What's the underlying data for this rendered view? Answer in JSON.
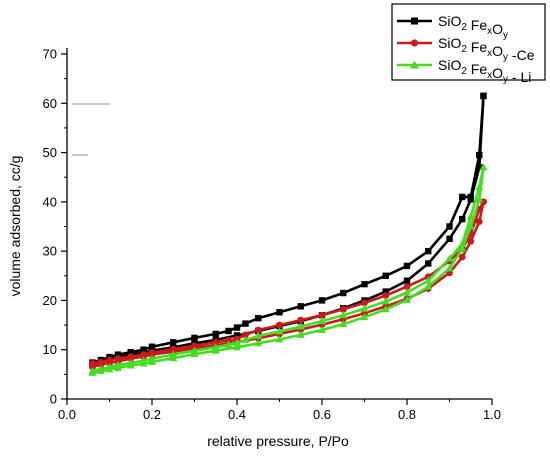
{
  "chart_data": {
    "type": "line",
    "xlabel": "relative pressure, P/Po",
    "ylabel": "volume adsorbed, cc/g",
    "xlim": [
      0.0,
      1.0
    ],
    "ylim": [
      0,
      70
    ],
    "xticks": [
      "0.0",
      "0.2",
      "0.4",
      "0.6",
      "0.8",
      "1.0"
    ],
    "yticks": [
      "0",
      "10",
      "20",
      "30",
      "40",
      "50",
      "60",
      "70"
    ],
    "legend_position": "top-right",
    "series": [
      {
        "name": "SiO2 FexOy",
        "legend": {
          "a": "SiO",
          "a_sub": "2",
          "b": " Fe",
          "b_sub": "x",
          "c": "O",
          "c_sub": "y",
          "d": ""
        },
        "color": "#000000",
        "marker": "square",
        "adsorption": {
          "x": [
            0.06,
            0.08,
            0.1,
            0.12,
            0.15,
            0.18,
            0.2,
            0.25,
            0.3,
            0.35,
            0.4,
            0.45,
            0.5,
            0.55,
            0.6,
            0.65,
            0.7,
            0.75,
            0.8,
            0.85,
            0.9,
            0.93,
            0.95,
            0.97,
            0.98
          ],
          "y": [
            7.0,
            7.6,
            8.0,
            8.4,
            9.0,
            9.4,
            9.8,
            10.5,
            11.3,
            12.0,
            12.9,
            13.8,
            14.8,
            15.8,
            17.0,
            18.4,
            20.0,
            21.8,
            24.0,
            27.5,
            32.5,
            36.5,
            40.5,
            47.0,
            61.5
          ]
        },
        "desorption": {
          "x": [
            0.98,
            0.97,
            0.95,
            0.93,
            0.9,
            0.85,
            0.8,
            0.75,
            0.7,
            0.65,
            0.6,
            0.55,
            0.5,
            0.45,
            0.42,
            0.4,
            0.38,
            0.35,
            0.3,
            0.25,
            0.2,
            0.18,
            0.15,
            0.12,
            0.1,
            0.08,
            0.06
          ],
          "y": [
            61.5,
            49.5,
            41.0,
            41.0,
            35.0,
            30.0,
            27.0,
            25.0,
            23.3,
            21.5,
            20.0,
            18.8,
            17.6,
            16.4,
            15.3,
            14.5,
            13.8,
            13.2,
            12.4,
            11.5,
            10.6,
            10.0,
            9.5,
            9.0,
            8.5,
            7.9,
            7.4
          ]
        }
      },
      {
        "name": "SiO2 FexOy -Ce",
        "legend": {
          "a": "SiO",
          "a_sub": "2",
          "b": " Fe",
          "b_sub": "x",
          "c": "O",
          "c_sub": "y",
          "d": " -Ce"
        },
        "color": "#cc1a1a",
        "marker": "circle",
        "adsorption": {
          "x": [
            0.06,
            0.08,
            0.1,
            0.12,
            0.15,
            0.18,
            0.2,
            0.25,
            0.3,
            0.35,
            0.4,
            0.45,
            0.5,
            0.55,
            0.6,
            0.65,
            0.7,
            0.75,
            0.8,
            0.85,
            0.9,
            0.93,
            0.95,
            0.97,
            0.98
          ],
          "y": [
            6.5,
            7.0,
            7.3,
            7.6,
            8.2,
            8.6,
            9.0,
            9.6,
            10.3,
            10.9,
            11.6,
            12.3,
            13.2,
            14.1,
            15.1,
            16.2,
            17.4,
            18.8,
            20.3,
            22.4,
            25.6,
            28.8,
            32.0,
            36.0,
            40.0
          ]
        },
        "desorption": {
          "x": [
            0.98,
            0.97,
            0.95,
            0.93,
            0.9,
            0.85,
            0.8,
            0.75,
            0.7,
            0.65,
            0.6,
            0.55,
            0.5,
            0.45,
            0.42,
            0.4,
            0.38,
            0.35,
            0.3,
            0.25,
            0.2,
            0.18,
            0.15,
            0.12,
            0.1,
            0.08,
            0.06
          ],
          "y": [
            40.0,
            38.5,
            33.5,
            30.5,
            28.0,
            24.8,
            22.8,
            21.0,
            19.5,
            18.2,
            17.0,
            16.0,
            15.0,
            14.0,
            13.0,
            12.2,
            11.9,
            11.5,
            10.8,
            10.1,
            9.4,
            9.0,
            8.6,
            8.2,
            7.9,
            7.5,
            7.2
          ]
        }
      },
      {
        "name": "SiO2 FexOy - Li",
        "legend": {
          "a": "SiO",
          "a_sub": "2",
          "b": " Fe",
          "b_sub": "x",
          "c": "O",
          "c_sub": "y",
          "d": " - Li"
        },
        "color": "#44dd22",
        "marker": "triangle",
        "adsorption": {
          "x": [
            0.06,
            0.08,
            0.1,
            0.12,
            0.15,
            0.18,
            0.2,
            0.25,
            0.3,
            0.35,
            0.4,
            0.45,
            0.5,
            0.55,
            0.6,
            0.65,
            0.7,
            0.75,
            0.8,
            0.85,
            0.9,
            0.93,
            0.95,
            0.97,
            0.98
          ],
          "y": [
            5.3,
            5.7,
            6.0,
            6.3,
            6.8,
            7.2,
            7.5,
            8.3,
            9.1,
            9.8,
            10.5,
            11.3,
            12.1,
            13.0,
            14.0,
            15.2,
            16.6,
            18.2,
            20.1,
            22.8,
            26.5,
            30.5,
            35.0,
            40.5,
            47.0
          ]
        },
        "desorption": {
          "x": [
            0.98,
            0.97,
            0.95,
            0.93,
            0.9,
            0.85,
            0.8,
            0.75,
            0.7,
            0.65,
            0.6,
            0.55,
            0.5,
            0.45,
            0.42,
            0.4,
            0.38,
            0.35,
            0.3,
            0.25,
            0.2,
            0.18,
            0.15,
            0.12,
            0.1,
            0.08,
            0.06
          ],
          "y": [
            47.0,
            43.0,
            37.0,
            31.5,
            28.5,
            24.0,
            21.6,
            19.8,
            18.3,
            17.0,
            15.8,
            14.7,
            13.7,
            12.8,
            12.0,
            11.4,
            11.0,
            10.5,
            9.8,
            9.0,
            8.2,
            7.8,
            7.3,
            6.9,
            6.5,
            6.1,
            5.7
          ]
        }
      }
    ]
  }
}
